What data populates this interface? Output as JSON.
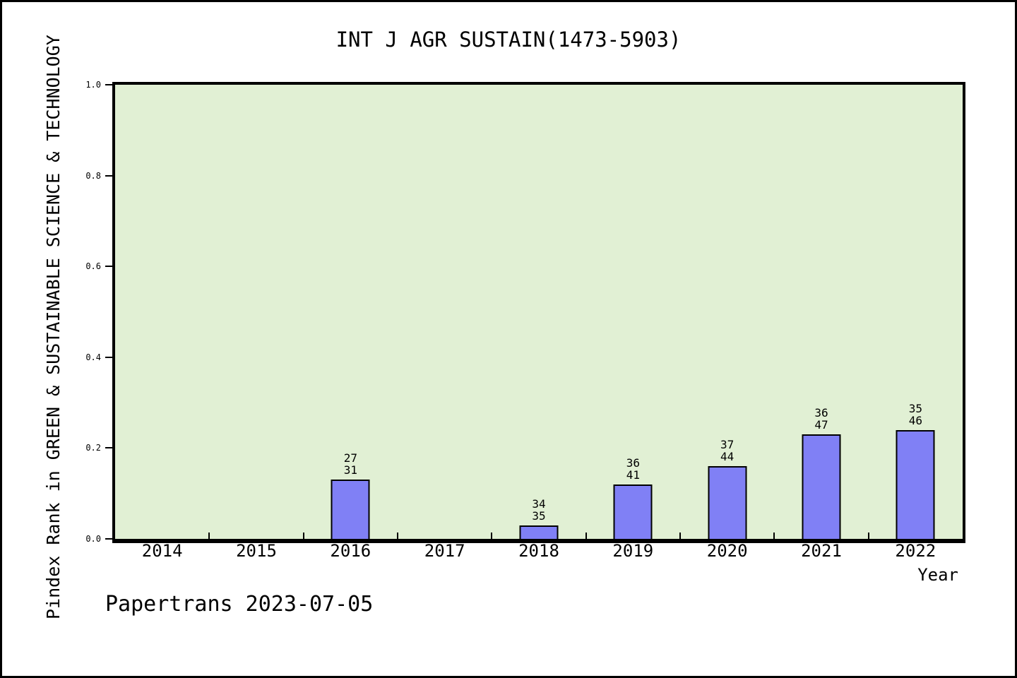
{
  "chart_data": {
    "type": "bar",
    "title": "INT J AGR SUSTAIN(1473-5903)",
    "xlabel": "Year",
    "ylabel": "Pindex Rank in GREEN & SUSTAINABLE SCIENCE & TECHNOLOGY",
    "footer": "Papertrans 2023-07-05",
    "categories": [
      "2014",
      "2015",
      "2016",
      "2017",
      "2018",
      "2019",
      "2020",
      "2021",
      "2022"
    ],
    "values": [
      null,
      null,
      0.13,
      null,
      0.03,
      0.12,
      0.16,
      0.23,
      0.24
    ],
    "bar_annotations": [
      null,
      null,
      [
        "27",
        "31"
      ],
      null,
      [
        "34",
        "35"
      ],
      [
        "36",
        "41"
      ],
      [
        "37",
        "44"
      ],
      [
        "36",
        "47"
      ],
      [
        "35",
        "46"
      ]
    ],
    "ytick_labels": [
      "0.0",
      "0.2",
      "0.4",
      "0.6",
      "0.8",
      "1.0"
    ],
    "ylim": [
      0.0,
      1.0
    ],
    "grid": false,
    "legend": null,
    "colors": {
      "plot_bg": "#e1f0d4",
      "bar_fill": "#8080f5",
      "bar_edge": "#000000",
      "text": "#000000",
      "page_bg": "#ffffff"
    }
  }
}
